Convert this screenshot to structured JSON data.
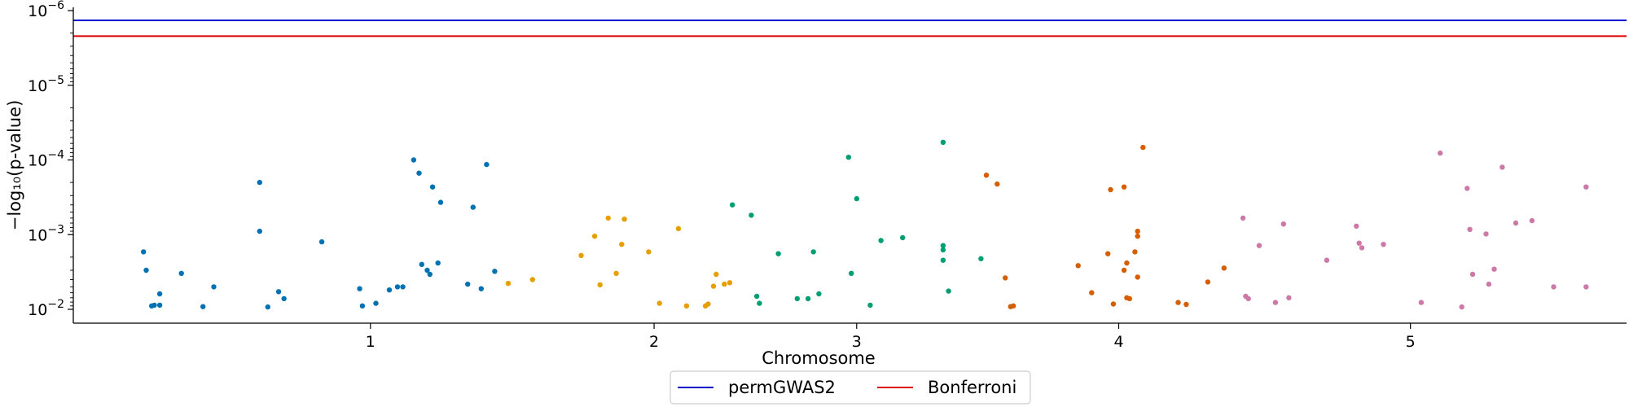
{
  "chart_data": {
    "type": "scatter",
    "title": "",
    "xlabel": "Chromosome",
    "ylabel": "−log₁₀(p-value)",
    "y_scale": "log",
    "y_inverted": true,
    "xlim": [
      0,
      5.75
    ],
    "x_ticks": [
      {
        "value": 1.1,
        "label": "1"
      },
      {
        "value": 2.15,
        "label": "2"
      },
      {
        "value": 2.9,
        "label": "3"
      },
      {
        "value": 3.87,
        "label": "4"
      },
      {
        "value": 4.95,
        "label": "5"
      }
    ],
    "y_ticks": [
      {
        "value": 1e-06,
        "base": "10",
        "exp": "−6"
      },
      {
        "value": 1e-05,
        "base": "10",
        "exp": "−5"
      },
      {
        "value": 0.0001,
        "base": "10",
        "exp": "−4"
      },
      {
        "value": 0.001,
        "base": "10",
        "exp": "−3"
      },
      {
        "value": 0.01,
        "base": "10",
        "exp": "−2"
      }
    ],
    "grid": false,
    "legend_position": "bottom-center",
    "thresholds": [
      {
        "name": "permGWAS2",
        "value": 1.35e-06,
        "color": "#0000cc"
      },
      {
        "name": "Bonferroni",
        "value": 2.2e-06,
        "color": "#dd0000"
      }
    ],
    "series": [
      {
        "color": "#0072b2",
        "points": [
          [
            0.26,
            0.0017
          ],
          [
            0.27,
            0.003
          ],
          [
            0.29,
            0.009
          ],
          [
            0.3,
            0.0088
          ],
          [
            0.32,
            0.0088
          ],
          [
            0.32,
            0.0062
          ],
          [
            0.4,
            0.0033
          ],
          [
            0.48,
            0.0092
          ],
          [
            0.52,
            0.005
          ],
          [
            0.69,
            0.0002
          ],
          [
            0.69,
            0.0009
          ],
          [
            0.72,
            0.0093
          ],
          [
            0.76,
            0.0058
          ],
          [
            0.78,
            0.0072
          ],
          [
            0.92,
            0.00125
          ],
          [
            1.06,
            0.0053
          ],
          [
            1.07,
            0.009
          ],
          [
            1.12,
            0.0083
          ],
          [
            1.17,
            0.0055
          ],
          [
            1.2,
            0.005
          ],
          [
            1.22,
            0.005
          ],
          [
            1.26,
            0.0001
          ],
          [
            1.28,
            0.00015
          ],
          [
            1.29,
            0.0025
          ],
          [
            1.31,
            0.003
          ],
          [
            1.32,
            0.0034
          ],
          [
            1.33,
            0.00023
          ],
          [
            1.35,
            0.0024
          ],
          [
            1.36,
            0.00037
          ],
          [
            1.46,
            0.0046
          ],
          [
            1.48,
            0.00043
          ],
          [
            1.51,
            0.0053
          ],
          [
            1.53,
            0.000115
          ],
          [
            1.56,
            0.0031
          ]
        ]
      },
      {
        "color": "#e69f00",
        "points": [
          [
            1.61,
            0.0045
          ],
          [
            1.7,
            0.004
          ],
          [
            1.88,
            0.0019
          ],
          [
            1.93,
            0.00105
          ],
          [
            1.95,
            0.0047
          ],
          [
            1.98,
            0.0006
          ],
          [
            2.01,
            0.0033
          ],
          [
            2.03,
            0.00135
          ],
          [
            2.04,
            0.00062
          ],
          [
            2.13,
            0.0017
          ],
          [
            2.17,
            0.0083
          ],
          [
            2.24,
            0.00083
          ],
          [
            2.27,
            0.009
          ],
          [
            2.34,
            0.009
          ],
          [
            2.35,
            0.0085
          ],
          [
            2.37,
            0.0049
          ],
          [
            2.38,
            0.0034
          ],
          [
            2.41,
            0.0046
          ],
          [
            2.43,
            0.0044
          ]
        ]
      },
      {
        "color": "#009e73",
        "points": [
          [
            2.44,
            0.0004
          ],
          [
            2.51,
            0.00055
          ],
          [
            2.53,
            0.0067
          ],
          [
            2.54,
            0.0083
          ],
          [
            2.61,
            0.0018
          ],
          [
            2.68,
            0.0072
          ],
          [
            2.72,
            0.0072
          ],
          [
            2.74,
            0.0017
          ],
          [
            2.76,
            0.0062
          ],
          [
            2.87,
            9.2e-05
          ],
          [
            2.88,
            0.0033
          ],
          [
            2.9,
            0.00033
          ],
          [
            2.95,
            0.0088
          ],
          [
            2.99,
            0.0012
          ],
          [
            3.07,
            0.0011
          ],
          [
            3.22,
            5.8e-05
          ],
          [
            3.22,
            0.0014
          ],
          [
            3.22,
            0.0016
          ],
          [
            3.22,
            0.0022
          ],
          [
            3.24,
            0.0057
          ],
          [
            3.36,
            0.0021
          ]
        ]
      },
      {
        "color": "#d55e00",
        "points": [
          [
            3.38,
            0.00016
          ],
          [
            3.42,
            0.00021
          ],
          [
            3.45,
            0.0038
          ],
          [
            3.47,
            0.0092
          ],
          [
            3.48,
            0.009
          ],
          [
            3.72,
            0.0026
          ],
          [
            3.77,
            0.006
          ],
          [
            3.83,
            0.0018
          ],
          [
            3.84,
            0.00025
          ],
          [
            3.85,
            0.0085
          ],
          [
            3.89,
            0.00023
          ],
          [
            3.89,
            0.003
          ],
          [
            3.9,
            0.0024
          ],
          [
            3.9,
            0.007
          ],
          [
            3.91,
            0.0072
          ],
          [
            3.93,
            0.0017
          ],
          [
            3.94,
            0.00105
          ],
          [
            3.94,
            0.0009
          ],
          [
            3.94,
            0.0037
          ],
          [
            3.96,
            6.8e-05
          ],
          [
            4.09,
            0.0081
          ],
          [
            4.12,
            0.0086
          ],
          [
            4.2,
            0.0043
          ],
          [
            4.26,
            0.0028
          ]
        ]
      },
      {
        "color": "#cc79a7",
        "points": [
          [
            4.33,
            0.0006
          ],
          [
            4.34,
            0.0067
          ],
          [
            4.35,
            0.0072
          ],
          [
            4.39,
            0.0014
          ],
          [
            4.45,
            0.0081
          ],
          [
            4.48,
            0.00072
          ],
          [
            4.5,
            0.007
          ],
          [
            4.64,
            0.0022
          ],
          [
            4.75,
            0.00077
          ],
          [
            4.76,
            0.0013
          ],
          [
            4.77,
            0.0015
          ],
          [
            4.85,
            0.00135
          ],
          [
            4.99,
            0.0081
          ],
          [
            5.06,
            8.1e-05
          ],
          [
            5.14,
            0.0093
          ],
          [
            5.16,
            0.00024
          ],
          [
            5.17,
            0.00085
          ],
          [
            5.18,
            0.0034
          ],
          [
            5.23,
            0.00098
          ],
          [
            5.24,
            0.0046
          ],
          [
            5.26,
            0.0029
          ],
          [
            5.29,
            0.000125
          ],
          [
            5.34,
            0.0007
          ],
          [
            5.4,
            0.00065
          ],
          [
            5.48,
            0.005
          ],
          [
            5.6,
            0.005
          ],
          [
            5.6,
            0.00023
          ]
        ]
      }
    ]
  }
}
